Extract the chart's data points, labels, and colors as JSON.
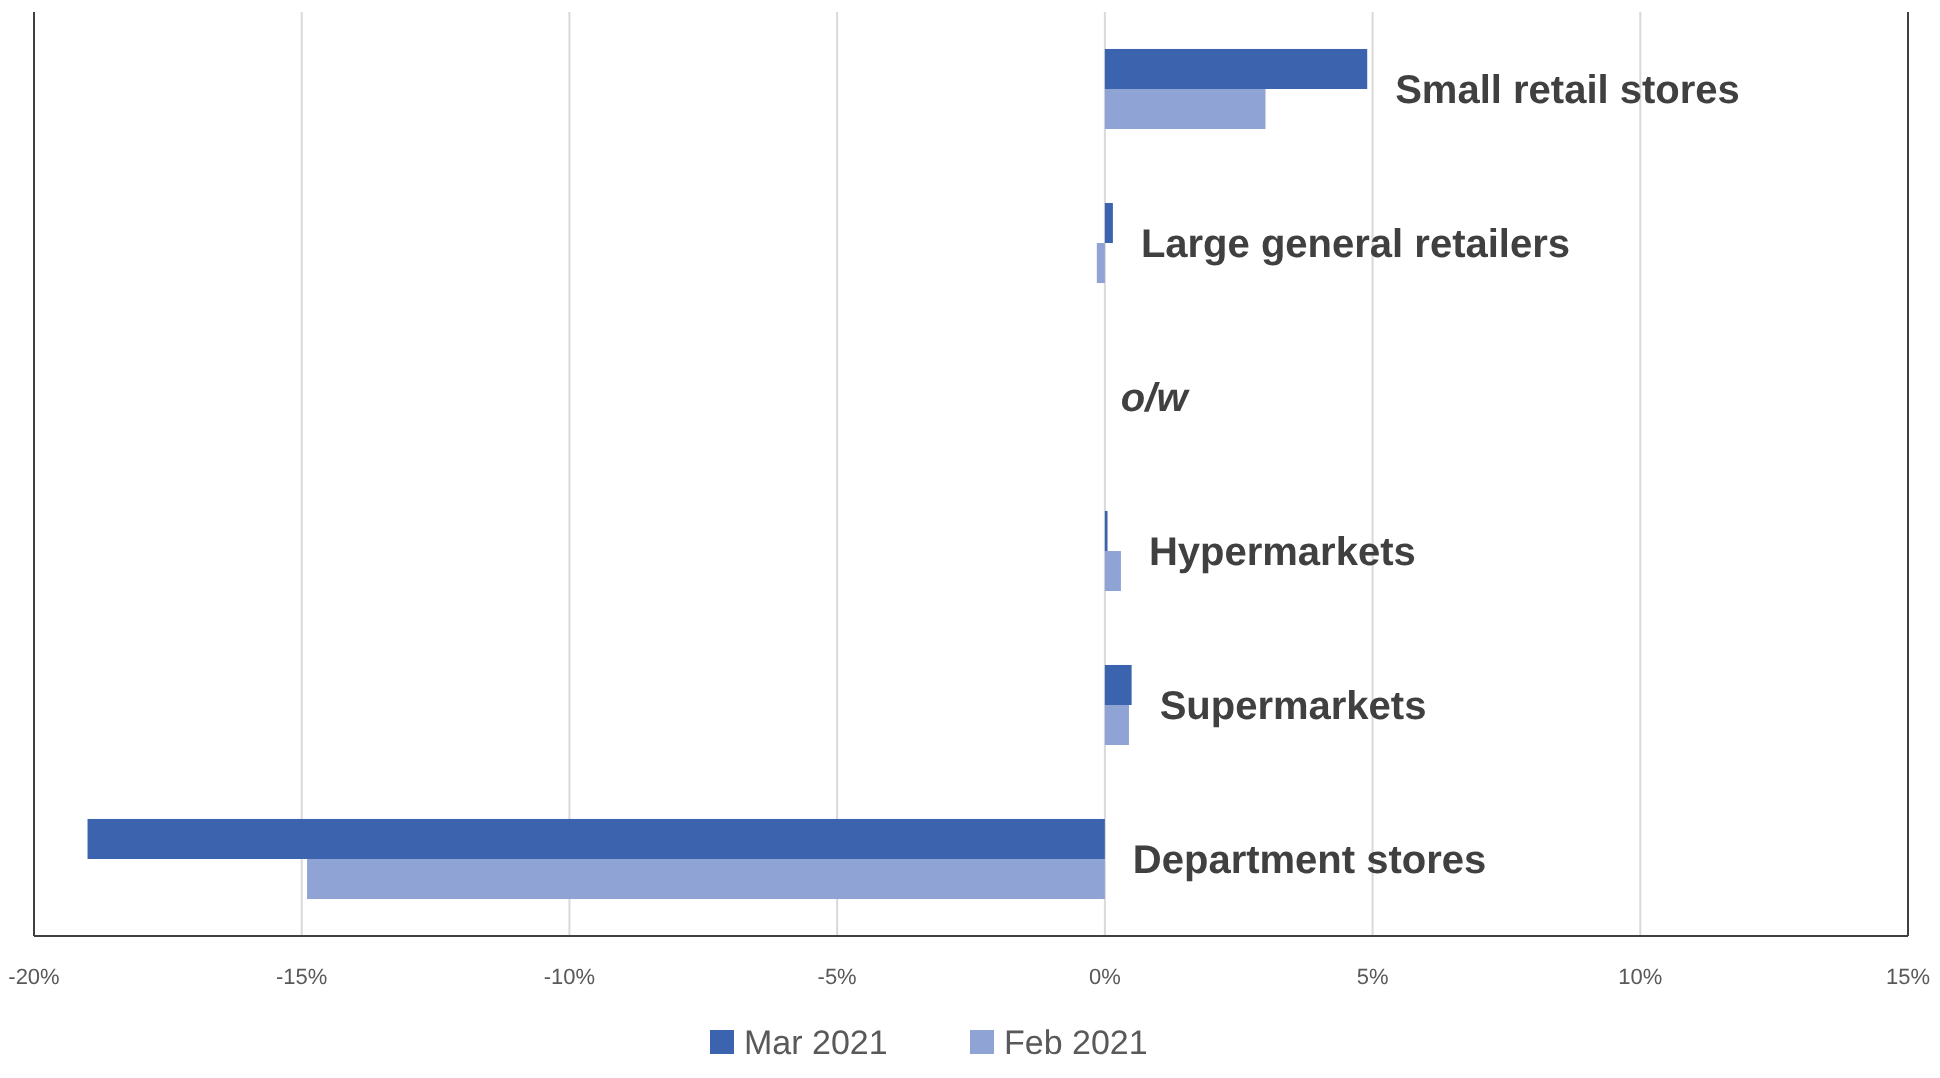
{
  "chart_data": {
    "type": "bar",
    "orientation": "horizontal",
    "categories": [
      "Small retail stores",
      "Large general retailers",
      "o/w",
      "Hypermarkets",
      "Supermarkets",
      "Department stores"
    ],
    "series": [
      {
        "name": "Mar 2021",
        "color": "#3c64ae",
        "values": [
          4.9,
          0.15,
          null,
          0.05,
          0.5,
          -19
        ]
      },
      {
        "name": "Feb 2021",
        "color": "#8fa3d4",
        "values": [
          3,
          -0.15,
          null,
          0.3,
          0.45,
          -14.9
        ]
      }
    ],
    "xlim": [
      -20,
      15
    ],
    "xticks": [
      {
        "value": -20,
        "label": "-20%"
      },
      {
        "value": -15,
        "label": "-15%"
      },
      {
        "value": -10,
        "label": "-10%"
      },
      {
        "value": -5,
        "label": "-5%"
      },
      {
        "value": 0,
        "label": "0%"
      },
      {
        "value": 5,
        "label": "5%"
      },
      {
        "value": 10,
        "label": "10%"
      },
      {
        "value": 15,
        "label": "15%"
      }
    ],
    "grid": "x",
    "legend": "bottom"
  }
}
